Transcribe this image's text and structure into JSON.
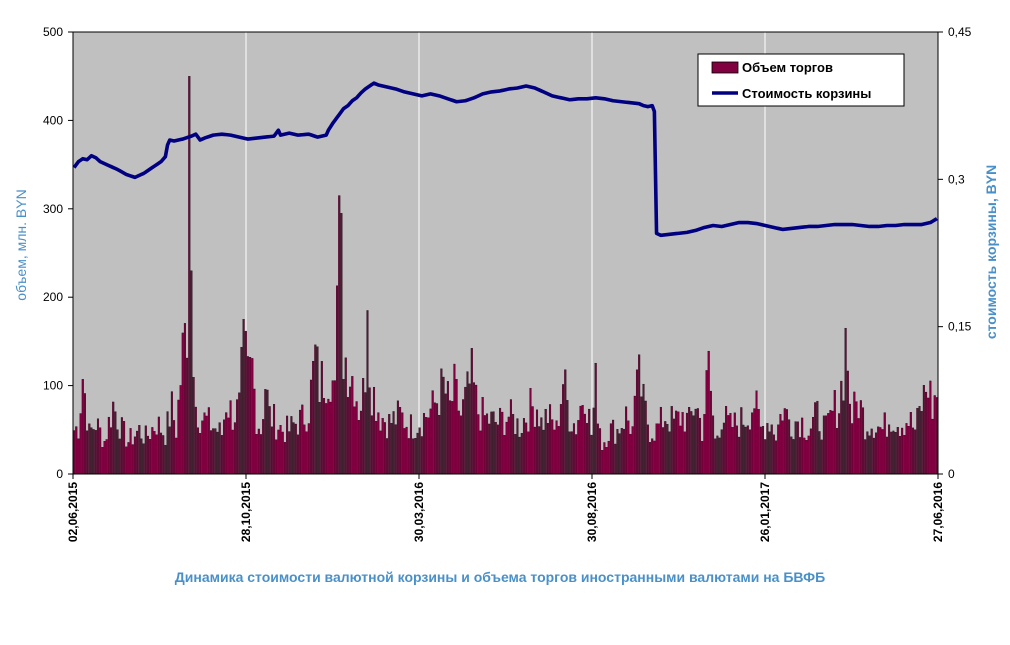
{
  "chart_data": {
    "type": "bar+line",
    "title": "Динамика стоимости валютной корзины и объема торгов иностранными валютами на БВФБ",
    "ylabel_left": "объем, млн. BYN",
    "ylabel_right": "стоимость корзины, BYN",
    "y_left": {
      "lim": [
        0,
        500
      ],
      "ticks": [
        "0",
        "100",
        "200",
        "300",
        "400",
        "500"
      ]
    },
    "y_right": {
      "lim": [
        0,
        0.45
      ],
      "ticks": [
        "0",
        "0,15",
        "0,3",
        "0,45"
      ]
    },
    "x_ticks": [
      "02,06,2015",
      "28,10,2015",
      "30,03,2016",
      "30,08,2016",
      "26,01,2017",
      "27,06,2016"
    ],
    "legend": {
      "placement": "top-right",
      "entries": [
        "Объем торгов",
        "Стоимость корзины"
      ]
    },
    "grid": {
      "vertical": true,
      "horizontal": false
    },
    "colors": {
      "plot_bg": "#c0c0c0",
      "bar": "#800040",
      "line": "#000080",
      "title": "#4a90c8",
      "axis_text": "#000000",
      "ylabel": "#4a90c8"
    },
    "series": [
      {
        "name": "Объем торгов",
        "type": "bar",
        "axis": "left",
        "anchors": [
          [
            0,
            60
          ],
          [
            2,
            65
          ],
          [
            4,
            135
          ],
          [
            5,
            110
          ],
          [
            7,
            55
          ],
          [
            10,
            70
          ],
          [
            14,
            45
          ],
          [
            18,
            95
          ],
          [
            22,
            60
          ],
          [
            25,
            45
          ],
          [
            30,
            60
          ],
          [
            33,
            50
          ],
          [
            38,
            70
          ],
          [
            42,
            55
          ],
          [
            45,
            90
          ],
          [
            47,
            60
          ],
          [
            50,
            165
          ],
          [
            52,
            210
          ],
          [
            53,
            450
          ],
          [
            54,
            230
          ],
          [
            56,
            95
          ],
          [
            58,
            80
          ],
          [
            62,
            70
          ],
          [
            66,
            60
          ],
          [
            68,
            55
          ],
          [
            70,
            100
          ],
          [
            73,
            80
          ],
          [
            76,
            90
          ],
          [
            78,
            175
          ],
          [
            80,
            130
          ],
          [
            82,
            145
          ],
          [
            84,
            80
          ],
          [
            86,
            60
          ],
          [
            88,
            125
          ],
          [
            90,
            80
          ],
          [
            93,
            70
          ],
          [
            96,
            60
          ],
          [
            99,
            60
          ],
          [
            102,
            70
          ],
          [
            105,
            75
          ],
          [
            108,
            90
          ],
          [
            111,
            160
          ],
          [
            113,
            120
          ],
          [
            116,
            140
          ],
          [
            118,
            145
          ],
          [
            120,
            105
          ],
          [
            122,
            315
          ],
          [
            123,
            295
          ],
          [
            124,
            170
          ],
          [
            125,
            160
          ],
          [
            127,
            140
          ],
          [
            129,
            130
          ],
          [
            131,
            90
          ],
          [
            133,
            110
          ],
          [
            135,
            185
          ],
          [
            137,
            120
          ],
          [
            139,
            100
          ],
          [
            141,
            80
          ],
          [
            145,
            70
          ],
          [
            150,
            80
          ],
          [
            155,
            65
          ],
          [
            160,
            75
          ],
          [
            165,
            90
          ],
          [
            170,
            120
          ],
          [
            173,
            90
          ],
          [
            175,
            115
          ],
          [
            178,
            80
          ],
          [
            180,
            100
          ],
          [
            183,
            130
          ],
          [
            186,
            85
          ],
          [
            190,
            75
          ],
          [
            195,
            70
          ],
          [
            200,
            80
          ],
          [
            205,
            65
          ],
          [
            210,
            90
          ],
          [
            213,
            95
          ],
          [
            215,
            70
          ],
          [
            218,
            80
          ],
          [
            222,
            60
          ],
          [
            225,
            130
          ],
          [
            228,
            80
          ],
          [
            231,
            65
          ],
          [
            235,
            120
          ],
          [
            238,
            55
          ],
          [
            240,
            120
          ],
          [
            243,
            40
          ],
          [
            246,
            60
          ],
          [
            250,
            60
          ],
          [
            254,
            80
          ],
          [
            257,
            60
          ],
          [
            260,
            135
          ],
          [
            262,
            95
          ],
          [
            265,
            60
          ],
          [
            268,
            60
          ],
          [
            272,
            80
          ],
          [
            276,
            70
          ],
          [
            280,
            80
          ],
          [
            283,
            70
          ],
          [
            286,
            100
          ],
          [
            289,
            60
          ],
          [
            292,
            145
          ],
          [
            295,
            45
          ],
          [
            298,
            80
          ],
          [
            302,
            65
          ],
          [
            306,
            70
          ],
          [
            310,
            80
          ],
          [
            313,
            100
          ],
          [
            316,
            60
          ],
          [
            320,
            75
          ],
          [
            323,
            55
          ],
          [
            326,
            90
          ],
          [
            330,
            70
          ],
          [
            334,
            75
          ],
          [
            338,
            60
          ],
          [
            342,
            80
          ],
          [
            346,
            60
          ],
          [
            350,
            90
          ],
          [
            352,
            95
          ],
          [
            355,
            165
          ],
          [
            356,
            130
          ],
          [
            358,
            80
          ],
          [
            361,
            100
          ],
          [
            364,
            70
          ],
          [
            368,
            70
          ],
          [
            372,
            60
          ],
          [
            376,
            80
          ],
          [
            380,
            70
          ],
          [
            384,
            75
          ],
          [
            387,
            60
          ],
          [
            390,
            95
          ],
          [
            393,
            125
          ],
          [
            395,
            90
          ],
          [
            397,
            110
          ]
        ],
        "spikes": [
          [
            53,
            450
          ],
          [
            54,
            230
          ],
          [
            122,
            315
          ],
          [
            123,
            295
          ],
          [
            135,
            185
          ],
          [
            78,
            175
          ],
          [
            355,
            165
          ],
          [
            260,
            135
          ]
        ]
      },
      {
        "name": "Стоимость корзины",
        "type": "line",
        "axis": "right",
        "anchors": [
          [
            0,
            0.312
          ],
          [
            2,
            0.318
          ],
          [
            4,
            0.321
          ],
          [
            6,
            0.32
          ],
          [
            8,
            0.324
          ],
          [
            10,
            0.322
          ],
          [
            12,
            0.318
          ],
          [
            16,
            0.314
          ],
          [
            20,
            0.31
          ],
          [
            24,
            0.305
          ],
          [
            28,
            0.302
          ],
          [
            32,
            0.306
          ],
          [
            36,
            0.312
          ],
          [
            40,
            0.318
          ],
          [
            42,
            0.323
          ],
          [
            43,
            0.335
          ],
          [
            44,
            0.34
          ],
          [
            46,
            0.339
          ],
          [
            50,
            0.341
          ],
          [
            54,
            0.344
          ],
          [
            56,
            0.346
          ],
          [
            58,
            0.34
          ],
          [
            60,
            0.342
          ],
          [
            64,
            0.345
          ],
          [
            68,
            0.346
          ],
          [
            72,
            0.345
          ],
          [
            76,
            0.343
          ],
          [
            80,
            0.341
          ],
          [
            84,
            0.342
          ],
          [
            88,
            0.343
          ],
          [
            92,
            0.344
          ],
          [
            94,
            0.35
          ],
          [
            95,
            0.345
          ],
          [
            99,
            0.347
          ],
          [
            103,
            0.345
          ],
          [
            108,
            0.346
          ],
          [
            112,
            0.343
          ],
          [
            116,
            0.345
          ],
          [
            117,
            0.35
          ],
          [
            119,
            0.357
          ],
          [
            121,
            0.363
          ],
          [
            122,
            0.366
          ],
          [
            124,
            0.372
          ],
          [
            126,
            0.375
          ],
          [
            128,
            0.38
          ],
          [
            130,
            0.383
          ],
          [
            132,
            0.388
          ],
          [
            134,
            0.392
          ],
          [
            136,
            0.395
          ],
          [
            138,
            0.398
          ],
          [
            140,
            0.396
          ],
          [
            144,
            0.394
          ],
          [
            148,
            0.392
          ],
          [
            152,
            0.389
          ],
          [
            156,
            0.387
          ],
          [
            160,
            0.385
          ],
          [
            164,
            0.387
          ],
          [
            168,
            0.385
          ],
          [
            172,
            0.382
          ],
          [
            176,
            0.379
          ],
          [
            180,
            0.38
          ],
          [
            184,
            0.383
          ],
          [
            188,
            0.387
          ],
          [
            192,
            0.389
          ],
          [
            196,
            0.39
          ],
          [
            200,
            0.392
          ],
          [
            204,
            0.393
          ],
          [
            208,
            0.395
          ],
          [
            212,
            0.393
          ],
          [
            216,
            0.389
          ],
          [
            220,
            0.385
          ],
          [
            224,
            0.383
          ],
          [
            228,
            0.381
          ],
          [
            232,
            0.382
          ],
          [
            236,
            0.382
          ],
          [
            240,
            0.383
          ],
          [
            244,
            0.382
          ],
          [
            248,
            0.38
          ],
          [
            252,
            0.379
          ],
          [
            256,
            0.378
          ],
          [
            260,
            0.377
          ],
          [
            262,
            0.375
          ],
          [
            264,
            0.374
          ],
          [
            266,
            0.375
          ],
          [
            267,
            0.369
          ],
          [
            268,
            0.245
          ],
          [
            270,
            0.243
          ],
          [
            274,
            0.244
          ],
          [
            278,
            0.245
          ],
          [
            282,
            0.246
          ],
          [
            286,
            0.248
          ],
          [
            290,
            0.251
          ],
          [
            294,
            0.253
          ],
          [
            298,
            0.252
          ],
          [
            302,
            0.254
          ],
          [
            306,
            0.256
          ],
          [
            310,
            0.256
          ],
          [
            314,
            0.255
          ],
          [
            318,
            0.253
          ],
          [
            322,
            0.251
          ],
          [
            326,
            0.249
          ],
          [
            330,
            0.25
          ],
          [
            334,
            0.251
          ],
          [
            338,
            0.252
          ],
          [
            342,
            0.252
          ],
          [
            346,
            0.253
          ],
          [
            350,
            0.254
          ],
          [
            354,
            0.254
          ],
          [
            358,
            0.254
          ],
          [
            362,
            0.253
          ],
          [
            366,
            0.252
          ],
          [
            370,
            0.252
          ],
          [
            374,
            0.253
          ],
          [
            378,
            0.253
          ],
          [
            382,
            0.254
          ],
          [
            386,
            0.254
          ],
          [
            390,
            0.254
          ],
          [
            394,
            0.256
          ],
          [
            397,
            0.26
          ]
        ]
      }
    ]
  }
}
